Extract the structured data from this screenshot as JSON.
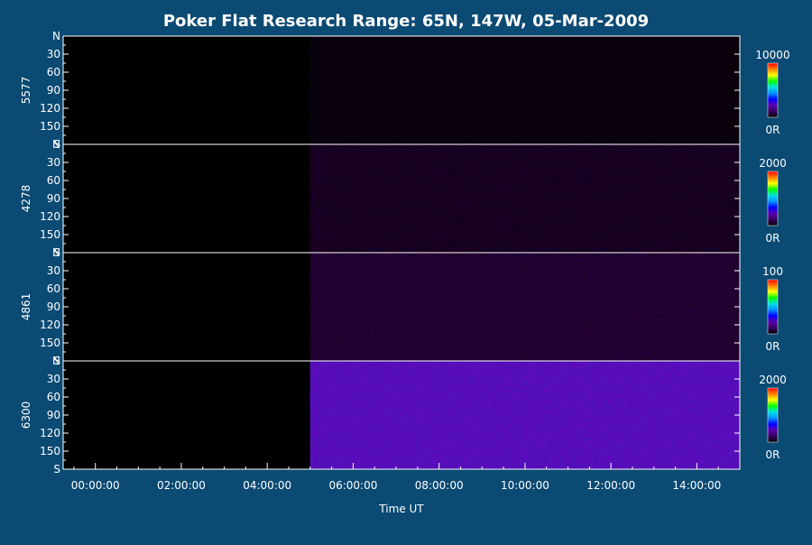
{
  "chart_data": {
    "type": "heatmap",
    "title": "Poker Flat Research Range: 65N, 147W, 05-Mar-2009",
    "xlabel": "Time UT",
    "x_ticks": [
      "00:00:00",
      "02:00:00",
      "04:00:00",
      "06:00:00",
      "08:00:00",
      "10:00:00",
      "12:00:00",
      "14:00:00"
    ],
    "x_tick_hours": [
      0,
      2,
      4,
      6,
      8,
      10,
      12,
      14
    ],
    "xlim_hours": [
      -0.75,
      15
    ],
    "data_start_hour": 5,
    "y_tick_labels": [
      "N",
      "30",
      "60",
      "90",
      "120",
      "150",
      "S"
    ],
    "y_tick_values": [
      0,
      30,
      60,
      90,
      120,
      150,
      180
    ],
    "ylim": [
      0,
      180
    ],
    "panels": [
      {
        "wavelength": "5577",
        "scale_max": "10000",
        "scale_min": "0R",
        "intensity_level": 0.03
      },
      {
        "wavelength": "4278",
        "scale_max": "2000",
        "scale_min": "0R",
        "intensity_level": 0.08
      },
      {
        "wavelength": "4861",
        "scale_max": "100",
        "scale_min": "0R",
        "intensity_level": 0.12
      },
      {
        "wavelength": "6300",
        "scale_max": "2000",
        "scale_min": "0R",
        "intensity_level": 0.25
      }
    ],
    "colormap": [
      "#000000",
      "#3a0060",
      "#5a00b0",
      "#0000ff",
      "#0090ff",
      "#00e0e0",
      "#00ff00",
      "#ffff00",
      "#ff8000",
      "#ff0000"
    ]
  }
}
